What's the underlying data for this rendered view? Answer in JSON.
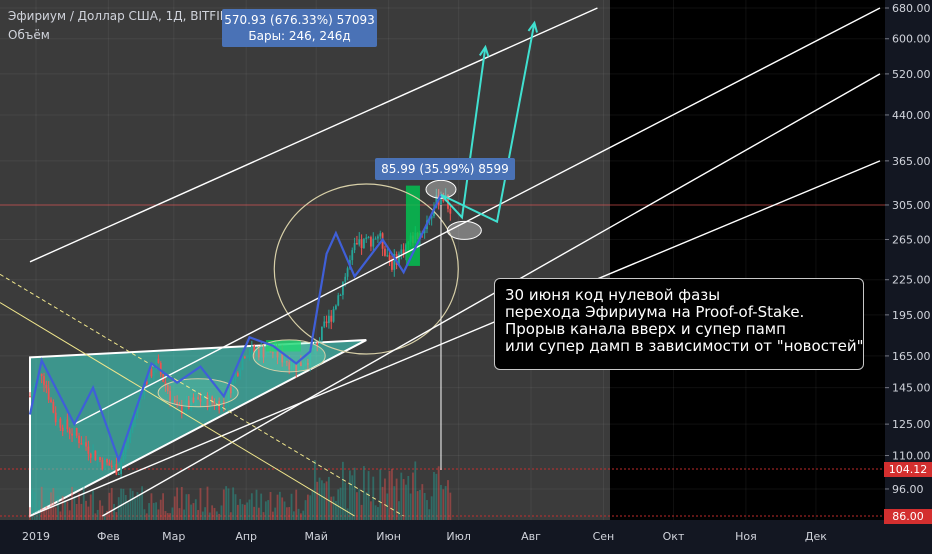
{
  "header": {
    "symbol": "Эфириум / Доллар США, 1Д, BITFINEX",
    "indicator": "Объём"
  },
  "measure_tooltips": [
    {
      "line1": "570.93 (676.33%) 57093",
      "line2": "Бары: 246, 246д"
    },
    {
      "line1": "85.99 (35.99%) 8599",
      "line2": ""
    }
  ],
  "annotation": {
    "lines": [
      "30 июня  код нулевой фазы",
      "перехода Эфириума на Proof-of-Stake.",
      "Прорыв канала вверх и супер памп",
      "или супер дамп в зависимости от \"новостей\""
    ]
  },
  "price_markers": [
    {
      "label": "104.12",
      "value": 104.12,
      "color": "#d32f2f"
    },
    {
      "label": "86.00",
      "value": 86.0,
      "color": "#d32f2f"
    }
  ],
  "chart_data": {
    "type": "candlestick",
    "title": "Эфириум / Доллар США, 1Д, BITFINEX",
    "y_scale": "log",
    "ylim": [
      86,
      680
    ],
    "y_ticks": [
      {
        "label": "680.00",
        "value": 680
      },
      {
        "label": "600.00",
        "value": 600
      },
      {
        "label": "520.00",
        "value": 520
      },
      {
        "label": "440.00",
        "value": 440
      },
      {
        "label": "365.00",
        "value": 365
      },
      {
        "label": "305.00",
        "value": 305
      },
      {
        "label": "265.00",
        "value": 265
      },
      {
        "label": "225.00",
        "value": 225
      },
      {
        "label": "195.00",
        "value": 195
      },
      {
        "label": "165.00",
        "value": 165
      },
      {
        "label": "145.00",
        "value": 145
      },
      {
        "label": "125.00",
        "value": 125
      },
      {
        "label": "110.00",
        "value": 110
      },
      {
        "label": "96.00",
        "value": 96
      }
    ],
    "x_ticks": [
      "2019",
      "Фев",
      "Мар",
      "Апр",
      "Май",
      "Июн",
      "Июл",
      "Авг",
      "Сен",
      "Окт",
      "Ноя",
      "Дек"
    ],
    "x_range": [
      "2019-01-01",
      "2019-12-31"
    ],
    "grid": true,
    "colors": {
      "up": "#26a69a",
      "down": "#ef5350",
      "channel": "#ffffff",
      "wave": "#3f5fd8",
      "forecast": "#40e0d0"
    },
    "price_path": [
      [
        "2019-01-01",
        140
      ],
      [
        "2019-01-06",
        155
      ],
      [
        "2019-01-12",
        128
      ],
      [
        "2019-01-20",
        120
      ],
      [
        "2019-02-01",
        107
      ],
      [
        "2019-02-08",
        104
      ],
      [
        "2019-02-18",
        145
      ],
      [
        "2019-02-24",
        160
      ],
      [
        "2019-03-05",
        132
      ],
      [
        "2019-03-15",
        138
      ],
      [
        "2019-03-25",
        136
      ],
      [
        "2019-04-03",
        168
      ],
      [
        "2019-04-15",
        168
      ],
      [
        "2019-04-25",
        158
      ],
      [
        "2019-05-01",
        165
      ],
      [
        "2019-05-10",
        195
      ],
      [
        "2019-05-20",
        255
      ],
      [
        "2019-05-30",
        270
      ],
      [
        "2019-06-05",
        240
      ],
      [
        "2019-06-12",
        262
      ],
      [
        "2019-06-18",
        275
      ],
      [
        "2019-06-26",
        320
      ],
      [
        "2019-06-30",
        300
      ]
    ],
    "channel_lines": [
      {
        "start": [
          "2019-01-01",
          242
        ],
        "end": [
          "2019-09-01",
          680
        ]
      },
      {
        "start": [
          "2019-01-20",
          125
        ],
        "end": [
          "2019-12-31",
          680
        ]
      },
      {
        "start": [
          "2019-01-01",
          86
        ],
        "end": [
          "2019-12-31",
          365
        ]
      },
      {
        "start": [
          "2019-02-01",
          86
        ],
        "end": [
          "2019-12-31",
          520
        ]
      }
    ],
    "wave_path": [
      [
        "2019-01-01",
        130
      ],
      [
        "2019-01-06",
        162
      ],
      [
        "2019-01-20",
        125
      ],
      [
        "2019-01-28",
        145
      ],
      [
        "2019-02-08",
        108
      ],
      [
        "2019-02-22",
        160
      ],
      [
        "2019-03-05",
        148
      ],
      [
        "2019-03-15",
        158
      ],
      [
        "2019-03-25",
        140
      ],
      [
        "2019-04-05",
        178
      ],
      [
        "2019-04-15",
        172
      ],
      [
        "2019-04-25",
        160
      ],
      [
        "2019-05-01",
        168
      ],
      [
        "2019-05-08",
        250
      ],
      [
        "2019-05-12",
        272
      ],
      [
        "2019-05-20",
        228
      ],
      [
        "2019-06-01",
        265
      ],
      [
        "2019-06-10",
        232
      ],
      [
        "2019-06-26",
        318
      ]
    ],
    "forecast_paths": [
      [
        [
          "2019-06-26",
          318
        ],
        [
          "2019-07-05",
          290
        ],
        [
          "2019-07-15",
          580
        ]
      ],
      [
        [
          "2019-06-26",
          318
        ],
        [
          "2019-07-20",
          285
        ],
        [
          "2019-08-05",
          640
        ]
      ]
    ],
    "highlight_boxes": [
      {
        "start": "2019-04-12",
        "end": "2019-04-27",
        "low": 168,
        "high": 176
      },
      {
        "start": "2019-06-11",
        "end": "2019-06-17",
        "low": 238,
        "high": 330
      }
    ],
    "triangle": [
      [
        "2019-01-01",
        164
      ],
      [
        "2019-05-25",
        176
      ],
      [
        "2019-01-01",
        86
      ]
    ],
    "volume": {
      "max_bar_height_px_hint": "relative",
      "values_relative": "shown as bars at bottom"
    }
  }
}
